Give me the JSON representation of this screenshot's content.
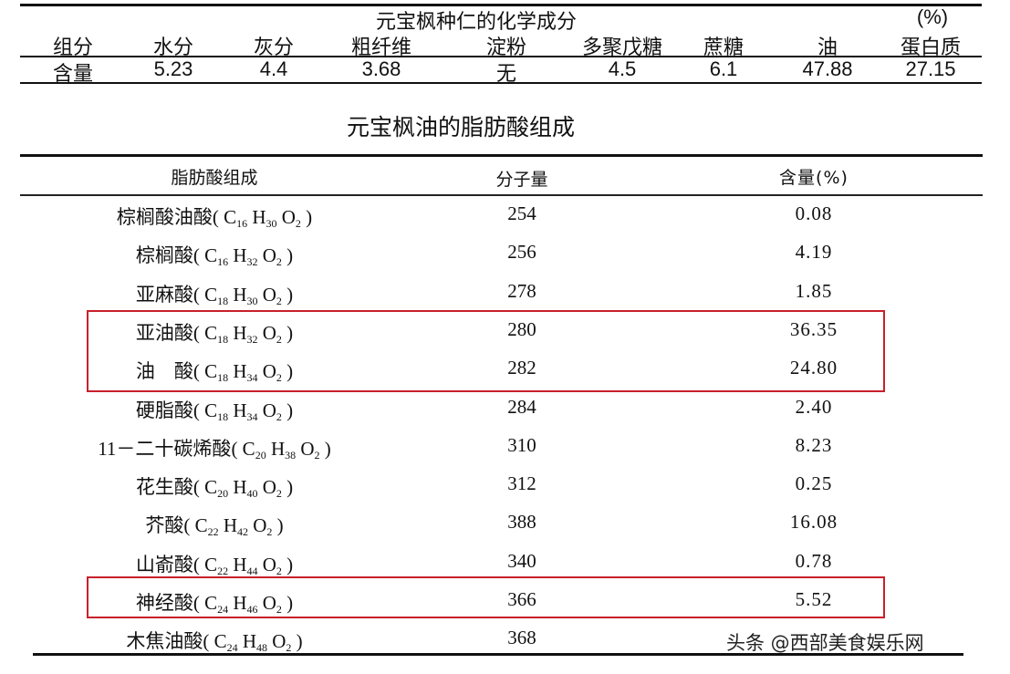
{
  "table1": {
    "title": "元宝枫种仁的化学成分",
    "unit": "(%)",
    "headers": [
      "组分",
      "水分",
      "灰分",
      "粗纤维",
      "淀粉",
      "多聚戊糖",
      "蔗糖",
      "油",
      "蛋白质"
    ],
    "values": [
      "含量",
      "5.23",
      "4.4",
      "3.68",
      "无",
      "4.5",
      "6.1",
      "47.88",
      "27.15"
    ]
  },
  "table2": {
    "title": "元宝枫油的脂肪酸组成",
    "headers": {
      "name": "脂肪酸组成",
      "mw": "分子量",
      "content": "含量(%)"
    },
    "rows": [
      {
        "name": "棕榈酸油酸",
        "c": "16",
        "h": "30",
        "o": "2",
        "mw": "254",
        "content": "0.08"
      },
      {
        "name": "棕榈酸",
        "c": "16",
        "h": "32",
        "o": "2",
        "mw": "256",
        "content": "4.19"
      },
      {
        "name": "亚麻酸",
        "c": "18",
        "h": "30",
        "o": "2",
        "mw": "278",
        "content": "1.85"
      },
      {
        "name": "亚油酸",
        "c": "18",
        "h": "32",
        "o": "2",
        "mw": "280",
        "content": "36.35",
        "highlight": true
      },
      {
        "name": "油　酸",
        "c": "18",
        "h": "34",
        "o": "2",
        "mw": "282",
        "content": "24.80",
        "highlight": true
      },
      {
        "name": "硬脂酸",
        "c": "18",
        "h": "34",
        "o": "2",
        "mw": "284",
        "content": "2.40"
      },
      {
        "name": "11－二十碳烯酸",
        "c": "20",
        "h": "38",
        "o": "2",
        "mw": "310",
        "content": "8.23"
      },
      {
        "name": "花生酸",
        "c": "20",
        "h": "40",
        "o": "2",
        "mw": "312",
        "content": "0.25"
      },
      {
        "name": "芥酸",
        "c": "22",
        "h": "42",
        "o": "2",
        "mw": "388",
        "content": "16.08"
      },
      {
        "name": "山嵛酸",
        "c": "22",
        "h": "44",
        "o": "2",
        "mw": "340",
        "content": "0.78"
      },
      {
        "name": "神经酸",
        "c": "24",
        "h": "46",
        "o": "2",
        "mw": "366",
        "content": "5.52",
        "highlight": true
      },
      {
        "name": "木焦油酸",
        "c": "24",
        "h": "48",
        "o": "2",
        "mw": "368",
        "content": ""
      }
    ],
    "highlight_color": "#c8202a"
  },
  "watermark": "头条 @西部美食娱乐网"
}
